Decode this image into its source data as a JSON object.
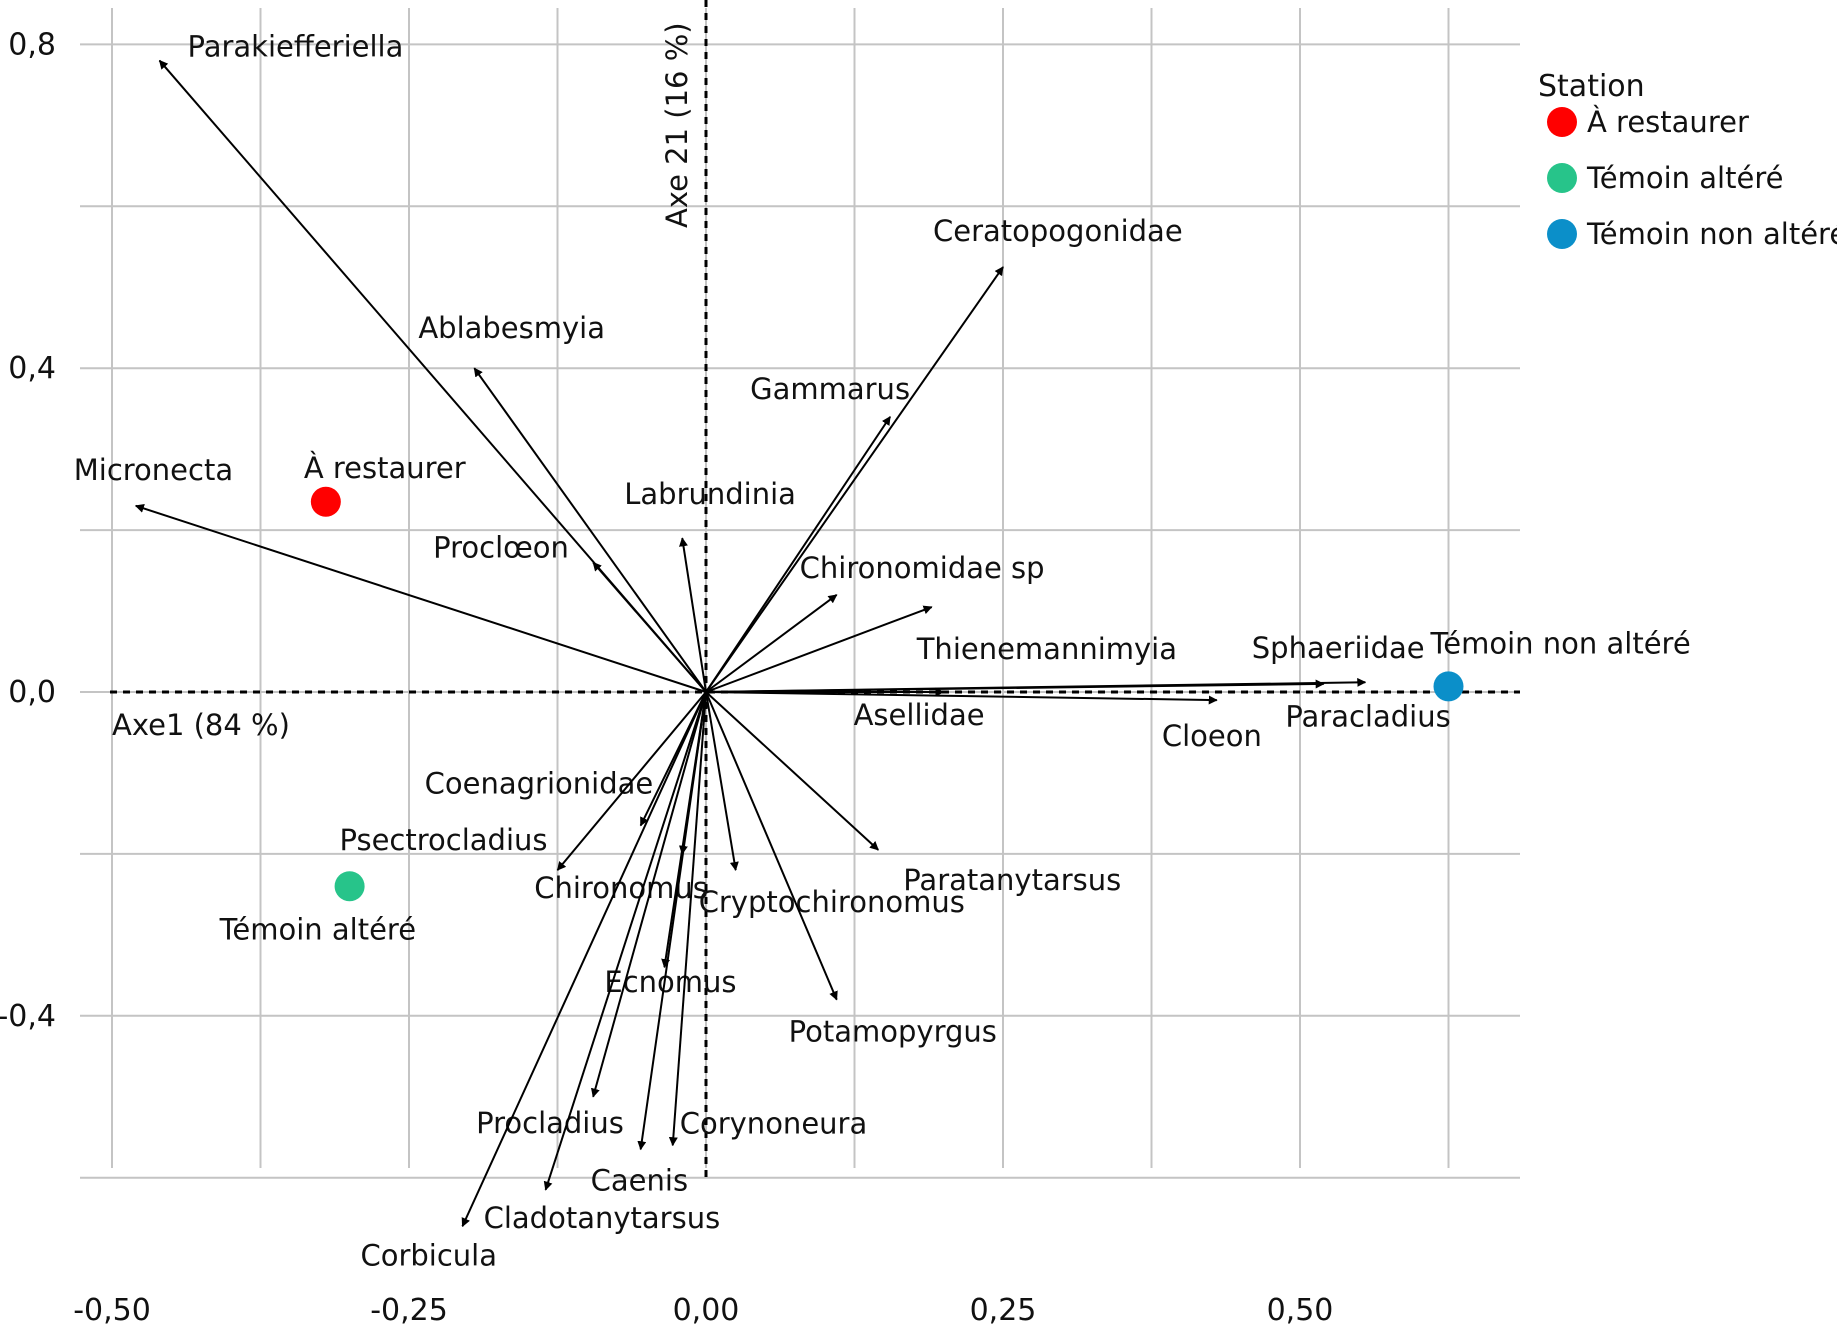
{
  "chart_data": {
    "type": "scatter",
    "subtype": "biplot",
    "xlabel": "Axe1 (84 %)",
    "ylabel": "Axe 21 (16 %)",
    "xlim": [
      -0.53,
      0.69
    ],
    "ylim": [
      -0.75,
      0.87
    ],
    "x_ticks": [
      {
        "value": -0.5,
        "label": "-0,50"
      },
      {
        "value": -0.25,
        "label": "-0,25"
      },
      {
        "value": 0.0,
        "label": "0,00"
      },
      {
        "value": 0.25,
        "label": "0,25"
      },
      {
        "value": 0.5,
        "label": "0,50"
      }
    ],
    "y_ticks": [
      {
        "value": 0.8,
        "label": "0,8"
      },
      {
        "value": 0.4,
        "label": "0,4"
      },
      {
        "value": 0.0,
        "label": "0,0"
      },
      {
        "value": -0.4,
        "label": "-0,4"
      }
    ],
    "grid": true,
    "legend": {
      "title": "Station",
      "position": "top-right",
      "entries": [
        {
          "label": "À restaurer",
          "color": "#ff0000"
        },
        {
          "label": "Témoin altéré",
          "color": "#27c48a"
        },
        {
          "label": "Témoin non altéré",
          "color": "#0b8fc9"
        }
      ]
    },
    "stations": [
      {
        "name": "À restaurer",
        "x": -0.32,
        "y": 0.235,
        "color": "#ff0000"
      },
      {
        "name": "Témoin altéré",
        "x": -0.3,
        "y": -0.24,
        "color": "#27c48a"
      },
      {
        "name": "Témoin non altéré",
        "x": 0.625,
        "y": 0.007,
        "color": "#0b8fc9"
      }
    ],
    "species": [
      {
        "name": "Parakiefferiella",
        "x": -0.46,
        "y": 0.78
      },
      {
        "name": "Ablabesmyia",
        "x": -0.195,
        "y": 0.4
      },
      {
        "name": "Micronecta",
        "x": -0.48,
        "y": 0.23
      },
      {
        "name": "Proclœon",
        "x": -0.095,
        "y": 0.16
      },
      {
        "name": "Labrundinia",
        "x": -0.02,
        "y": 0.19
      },
      {
        "name": "Gammarus",
        "x": 0.155,
        "y": 0.34
      },
      {
        "name": "Ceratopogonidae",
        "x": 0.25,
        "y": 0.525
      },
      {
        "name": "Chironomidae sp",
        "x": 0.11,
        "y": 0.12
      },
      {
        "name": "Thienemannimyia",
        "x": 0.19,
        "y": 0.105
      },
      {
        "name": "Asellidae",
        "x": 0.2,
        "y": 0.0
      },
      {
        "name": "Sphaeriidae",
        "x": 0.52,
        "y": 0.01
      },
      {
        "name": "Paracladius",
        "x": 0.555,
        "y": 0.012
      },
      {
        "name": "Cloeon",
        "x": 0.43,
        "y": -0.01
      },
      {
        "name": "Coenagrionidae",
        "x": -0.055,
        "y": -0.165
      },
      {
        "name": "Psectrocladius",
        "x": -0.125,
        "y": -0.22
      },
      {
        "name": "Chironomus",
        "x": -0.02,
        "y": -0.2
      },
      {
        "name": "Cryptochironomus",
        "x": 0.025,
        "y": -0.22
      },
      {
        "name": "Paratanytarsus",
        "x": 0.145,
        "y": -0.195
      },
      {
        "name": "Ecnomus",
        "x": -0.035,
        "y": -0.34
      },
      {
        "name": "Potamopyrgus",
        "x": 0.11,
        "y": -0.38
      },
      {
        "name": "Procladius",
        "x": -0.095,
        "y": -0.5
      },
      {
        "name": "Caenis",
        "x": -0.055,
        "y": -0.565
      },
      {
        "name": "Corynoneura",
        "x": -0.028,
        "y": -0.56
      },
      {
        "name": "Cladotanytarsus",
        "x": -0.135,
        "y": -0.615
      },
      {
        "name": "Corbicula",
        "x": -0.205,
        "y": -0.66
      }
    ]
  }
}
